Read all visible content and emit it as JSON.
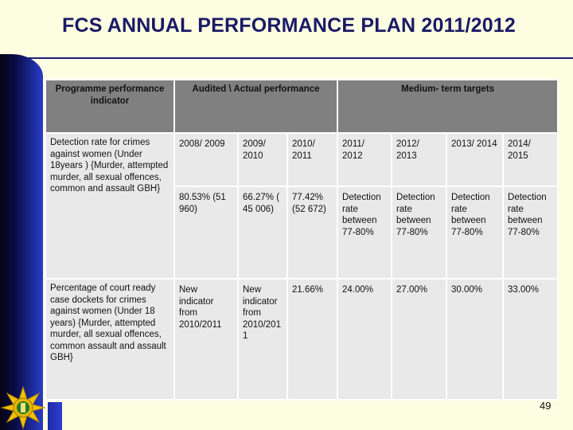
{
  "title": "FCS ANNUAL PERFORMANCE PLAN 2011/2012",
  "table": {
    "headers": {
      "indicator": "Programme performance indicator",
      "audited": "Audited \\ Actual performance",
      "medium": "Medium- term targets"
    },
    "rows": [
      {
        "indicator": "Detection rate for crimes against women (Under 18years ) {Murder, attempted murder, all sexual offences, common and assault GBH}",
        "years": [
          "2008/ 2009",
          "2009/ 2010",
          "2010/ 2011",
          "2011/ 2012",
          "2012/ 2013",
          "2013/ 2014",
          "2014/ 2015"
        ],
        "values": [
          "80.53% (51 960)",
          "66.27% ( 45 006)",
          "77.42% (52 672)",
          "Detection rate between 77-80%",
          "Detection rate between 77-80%",
          "Detection rate between 77-80%",
          "Detection rate between 77-80%"
        ]
      },
      {
        "indicator": "Percentage of court ready case dockets for crimes against women (Under 18 years) {Murder, attempted murder, all sexual offences, common assault and assault GBH}",
        "values": [
          "New indicator from 2010/2011",
          "New indicator from 2010/201 1",
          "21.66%",
          "24.00%",
          "27.00%",
          "30.00%",
          "33.00%"
        ]
      }
    ]
  },
  "page_number": "49",
  "colors": {
    "background": "#fdfde1",
    "title": "#1a1a66",
    "header_fill": "#808080",
    "cell_fill": "#e9e9e9"
  },
  "logo": "saps-star-emblem"
}
